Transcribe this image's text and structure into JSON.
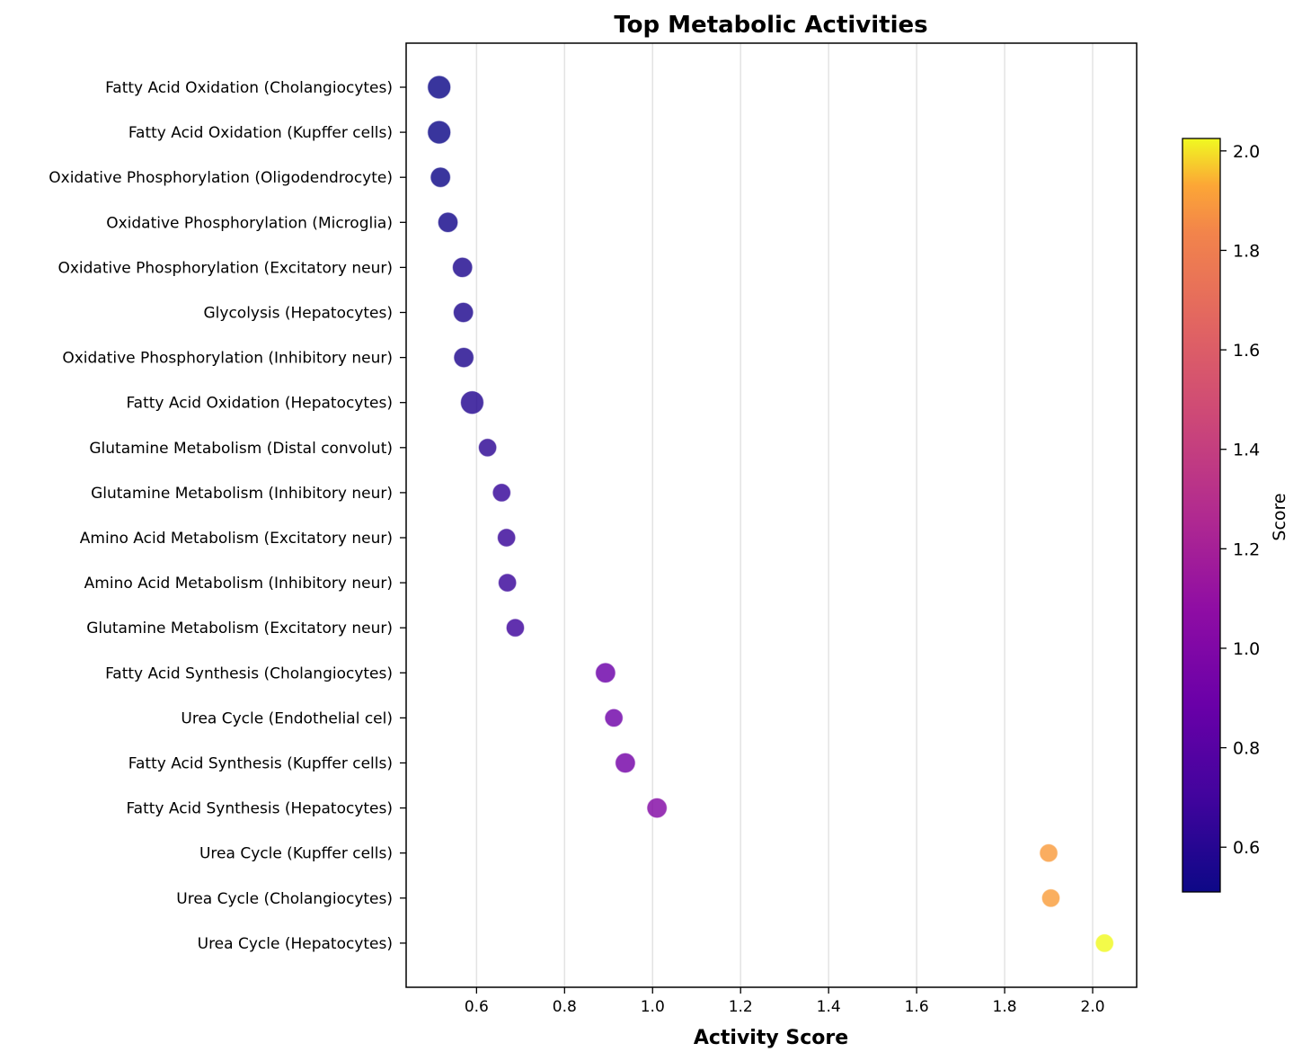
{
  "chart_data": {
    "type": "scatter",
    "title": "Top Metabolic Activities",
    "xlabel": "Activity Score",
    "ylabel": "",
    "xlim": [
      0.44,
      2.1
    ],
    "xticks": [
      "0.6",
      "0.8",
      "1.0",
      "1.2",
      "1.4",
      "1.6",
      "1.8",
      "2.0"
    ],
    "grid": "x-axis vertical lines",
    "colormap": "plasma",
    "colorbar": {
      "label": "Score",
      "range": [
        0.51,
        2.025
      ],
      "ticks": [
        "0.6",
        "0.8",
        "1.0",
        "1.2",
        "1.4",
        "1.6",
        "1.8",
        "2.0"
      ],
      "placement": "right"
    },
    "categories": [
      "Fatty Acid Oxidation (Cholangiocytes)",
      "Fatty Acid Oxidation (Kupffer cells)",
      "Oxidative Phosphorylation (Oligodendrocyte)",
      "Oxidative Phosphorylation (Microglia)",
      "Oxidative Phosphorylation (Excitatory neur)",
      "Glycolysis (Hepatocytes)",
      "Oxidative Phosphorylation (Inhibitory neur)",
      "Fatty Acid Oxidation (Hepatocytes)",
      "Glutamine Metabolism (Distal convolut)",
      "Glutamine Metabolism (Inhibitory neur)",
      "Amino Acid Metabolism (Excitatory neur)",
      "Amino Acid Metabolism (Inhibitory neur)",
      "Glutamine Metabolism (Excitatory neur)",
      "Fatty Acid Synthesis (Cholangiocytes)",
      "Urea Cycle (Endothelial cel)",
      "Fatty Acid Synthesis (Kupffer cells)",
      "Fatty Acid Synthesis (Hepatocytes)",
      "Urea Cycle (Kupffer cells)",
      "Urea Cycle (Cholangiocytes)",
      "Urea Cycle (Hepatocytes)"
    ],
    "values": [
      0.515,
      0.515,
      0.518,
      0.535,
      0.568,
      0.57,
      0.571,
      0.59,
      0.625,
      0.657,
      0.668,
      0.67,
      0.688,
      0.893,
      0.912,
      0.938,
      1.01,
      1.9,
      1.905,
      2.027
    ],
    "marker_weight": [
      1.0,
      1.0,
      0.75,
      0.75,
      0.75,
      0.75,
      0.75,
      1.0,
      0.6,
      0.6,
      0.6,
      0.6,
      0.6,
      0.75,
      0.6,
      0.75,
      0.75,
      0.6,
      0.6,
      0.6
    ]
  }
}
